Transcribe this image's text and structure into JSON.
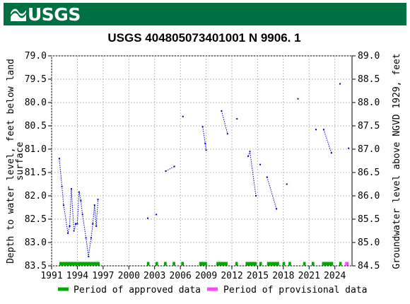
{
  "header": {
    "agency": "USGS",
    "background": "#006f41"
  },
  "chart_data": {
    "type": "scatter",
    "title": "USGS 404805073401001 N  9906. 1",
    "ylabel_left": "Depth to water level, feet below land surface",
    "ylabel_left_lines": [
      "Depth to water level, feet below land",
      "surface"
    ],
    "ylabel_right": "Groundwater level above NGVD 1929, feet",
    "xlim": [
      1991.0,
      2026.0
    ],
    "ylim_left": [
      79.0,
      83.5
    ],
    "ylim_left_inverted": true,
    "ylim_right": [
      84.5,
      89.0
    ],
    "x_ticks": [
      "1991",
      "1994",
      "1997",
      "2000",
      "2003",
      "2006",
      "2009",
      "2012",
      "2015",
      "2018",
      "2021",
      "2024"
    ],
    "x_tick_values": [
      1991,
      1994,
      1997,
      2000,
      2003,
      2006,
      2009,
      2012,
      2015,
      2018,
      2021,
      2024
    ],
    "y_ticks_left": [
      "79.0",
      "79.5",
      "80.0",
      "80.5",
      "81.0",
      "81.5",
      "82.0",
      "82.5",
      "83.0",
      "83.5"
    ],
    "y_tick_values_left": [
      79.0,
      79.5,
      80.0,
      80.5,
      81.0,
      81.5,
      82.0,
      82.5,
      83.0,
      83.5
    ],
    "y_ticks_right": [
      "89.0",
      "88.5",
      "88.0",
      "87.5",
      "87.0",
      "86.5",
      "86.0",
      "85.5",
      "85.0",
      "84.5"
    ],
    "grid": true,
    "point_color": "#0000cc",
    "segments": [
      [
        [
          1991.9,
          81.2
        ],
        [
          1992.2,
          81.8
        ],
        [
          1992.4,
          82.2
        ],
        [
          1992.9,
          82.8
        ],
        [
          1993.1,
          82.65
        ],
        [
          1993.3,
          81.85
        ],
        [
          1993.6,
          82.75
        ],
        [
          1993.8,
          82.6
        ],
        [
          1994.0,
          82.6
        ],
        [
          1994.2,
          81.92
        ],
        [
          1994.4,
          82.1
        ],
        [
          1994.6,
          82.4
        ],
        [
          1995.0,
          82.9
        ],
        [
          1995.3,
          83.3
        ],
        [
          1995.6,
          82.9
        ],
        [
          1995.8,
          82.6
        ],
        [
          1996.0,
          82.2
        ],
        [
          1996.2,
          82.65
        ],
        [
          1996.4,
          82.08
        ]
      ],
      [
        [
          2004.3,
          81.47
        ],
        [
          2005.3,
          81.37
        ]
      ],
      [
        [
          2008.6,
          80.52
        ],
        [
          2008.9,
          80.88
        ],
        [
          2009.0,
          81.02
        ]
      ],
      [
        [
          2010.8,
          80.18
        ],
        [
          2011.5,
          80.67
        ]
      ],
      [
        [
          2013.9,
          81.15
        ],
        [
          2014.1,
          81.05
        ],
        [
          2014.8,
          82.0
        ]
      ],
      [
        [
          2016.1,
          81.6
        ],
        [
          2017.2,
          82.28
        ]
      ],
      [
        [
          2022.7,
          80.58
        ],
        [
          2023.6,
          81.08
        ]
      ]
    ],
    "single_points": [
      [
        2002.2,
        82.48
      ],
      [
        2003.2,
        82.4
      ],
      [
        2006.3,
        80.3
      ],
      [
        2012.6,
        80.35
      ],
      [
        2015.3,
        81.33
      ],
      [
        2018.4,
        81.75
      ],
      [
        2019.7,
        79.92
      ],
      [
        2021.8,
        80.58
      ],
      [
        2024.6,
        79.6
      ],
      [
        2025.6,
        80.98
      ]
    ],
    "approved_periods": [
      [
        1991.9,
        1996.6
      ],
      [
        2002.1,
        2002.4
      ],
      [
        2003.1,
        2003.4
      ],
      [
        2004.1,
        2004.4
      ],
      [
        2005.1,
        2005.4
      ],
      [
        2006.1,
        2006.4
      ],
      [
        2008.2,
        2009.1
      ],
      [
        2010.2,
        2011.5
      ],
      [
        2012.4,
        2012.7
      ],
      [
        2013.6,
        2014.9
      ],
      [
        2015.2,
        2015.5
      ],
      [
        2016.1,
        2017.5
      ],
      [
        2017.9,
        2018.2
      ],
      [
        2018.6,
        2018.9
      ],
      [
        2020.3,
        2020.6
      ],
      [
        2021.3,
        2021.6
      ],
      [
        2022.5,
        2023.8
      ],
      [
        2024.5,
        2024.8
      ]
    ],
    "provisional_periods": [
      [
        2025.2,
        2025.6
      ]
    ],
    "approved_color": "#00aa00",
    "provisional_color": "#ff44ff",
    "legend": [
      {
        "label": "Period of approved data",
        "color": "#00aa00"
      },
      {
        "label": "Period of provisional data",
        "color": "#ff44ff"
      }
    ],
    "legend_position": "bottom"
  }
}
